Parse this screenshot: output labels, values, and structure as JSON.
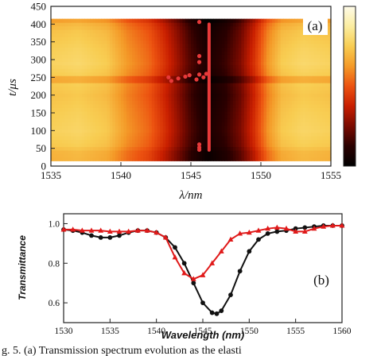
{
  "figure": {
    "caption": "g. 5.   (a) Transmission spectrum evolution as the elasti"
  },
  "chart_data": [
    {
      "type": "heatmap",
      "panel_label": "(a)",
      "xlabel": "λ/nm",
      "ylabel": "t/μs",
      "xlim": [
        1535,
        1555
      ],
      "ylim": [
        0,
        450
      ],
      "xticks": [
        "1535",
        "1540",
        "1545",
        "1550",
        "1555"
      ],
      "yticks": [
        "0",
        "50",
        "100",
        "150",
        "200",
        "250",
        "300",
        "350",
        "400",
        "450"
      ],
      "data_extent": {
        "x": [
          1535,
          1555
        ],
        "y": [
          15,
          415
        ]
      },
      "colorbar": true,
      "colormap": [
        "#000000",
        "#2a0000",
        "#7a0a00",
        "#c81e00",
        "#ec5210",
        "#f49a28",
        "#f8cd52",
        "#fbeda0",
        "#fefbe9"
      ],
      "dip_profile": {
        "wavelength": [
          1535,
          1537,
          1539,
          1540.5,
          1542,
          1543,
          1544,
          1545,
          1546.2,
          1547.5,
          1548.5,
          1549.5,
          1550.5,
          1551.5,
          1553,
          1555
        ],
        "intensity": [
          0.72,
          0.74,
          0.7,
          0.58,
          0.5,
          0.4,
          0.28,
          0.15,
          0.05,
          0.12,
          0.22,
          0.38,
          0.58,
          0.7,
          0.74,
          0.72
        ]
      },
      "time_modulation": {
        "t": [
          15,
          40,
          60,
          100,
          150,
          200,
          230,
          245,
          260,
          290,
          330,
          380,
          400,
          410,
          415
        ],
        "delta": [
          -0.05,
          -0.04,
          0.02,
          0.05,
          0.03,
          0.0,
          0.02,
          -0.12,
          0.03,
          0.06,
          0.04,
          0.0,
          -0.04,
          -0.1,
          -0.05
        ]
      },
      "markers": {
        "color": "#e83a3a",
        "line_x": 1546.3,
        "line_t": [
          45,
          400
        ],
        "points": [
          {
            "x": 1543.4,
            "y": 250
          },
          {
            "x": 1543.6,
            "y": 240
          },
          {
            "x": 1544.1,
            "y": 247
          },
          {
            "x": 1544.6,
            "y": 252
          },
          {
            "x": 1544.9,
            "y": 256
          },
          {
            "x": 1545.4,
            "y": 244
          },
          {
            "x": 1545.6,
            "y": 258
          },
          {
            "x": 1545.9,
            "y": 250
          },
          {
            "x": 1546.1,
            "y": 260
          },
          {
            "x": 1545.6,
            "y": 310
          },
          {
            "x": 1545.6,
            "y": 293
          },
          {
            "x": 1545.6,
            "y": 406
          },
          {
            "x": 1545.6,
            "y": 46
          },
          {
            "x": 1545.6,
            "y": 61
          },
          {
            "x": 1545.6,
            "y": 52
          }
        ]
      }
    },
    {
      "type": "line",
      "panel_label": "(b)",
      "xlabel": "Wavelength (nm)",
      "ylabel": "Transmittance",
      "xlim": [
        1530,
        1560
      ],
      "ylim": [
        0.5,
        1.05
      ],
      "xticks": [
        "1530",
        "1535",
        "1540",
        "1545",
        "1550",
        "1555",
        "1560"
      ],
      "yticks": [
        "0.6",
        "0.8",
        "1.0"
      ],
      "series": [
        {
          "color": "#111111",
          "marker": "circle",
          "x": [
            1530,
            1531,
            1532,
            1533,
            1534,
            1535,
            1536,
            1537,
            1538,
            1539,
            1540,
            1541,
            1542,
            1543,
            1544,
            1545,
            1546,
            1546.5,
            1547,
            1548,
            1549,
            1550,
            1551,
            1552,
            1553,
            1554,
            1555,
            1556,
            1557,
            1558,
            1559,
            1560
          ],
          "y": [
            0.97,
            0.965,
            0.955,
            0.94,
            0.93,
            0.93,
            0.94,
            0.955,
            0.965,
            0.965,
            0.955,
            0.93,
            0.88,
            0.8,
            0.7,
            0.6,
            0.55,
            0.545,
            0.56,
            0.64,
            0.76,
            0.86,
            0.92,
            0.95,
            0.96,
            0.965,
            0.975,
            0.98,
            0.985,
            0.99,
            0.99,
            0.99
          ]
        },
        {
          "color": "#e01a1a",
          "marker": "triangle",
          "x": [
            1530,
            1531,
            1532,
            1533,
            1534,
            1535,
            1536,
            1537,
            1538,
            1539,
            1540,
            1541,
            1542,
            1543,
            1544,
            1545,
            1546,
            1547,
            1548,
            1549,
            1550,
            1551,
            1552,
            1553,
            1554,
            1555,
            1556,
            1557,
            1558,
            1559,
            1560
          ],
          "y": [
            0.97,
            0.97,
            0.965,
            0.965,
            0.965,
            0.96,
            0.96,
            0.96,
            0.965,
            0.965,
            0.955,
            0.93,
            0.83,
            0.75,
            0.72,
            0.74,
            0.8,
            0.86,
            0.92,
            0.95,
            0.955,
            0.965,
            0.975,
            0.98,
            0.975,
            0.96,
            0.96,
            0.975,
            0.985,
            0.99,
            0.99
          ]
        }
      ]
    }
  ]
}
